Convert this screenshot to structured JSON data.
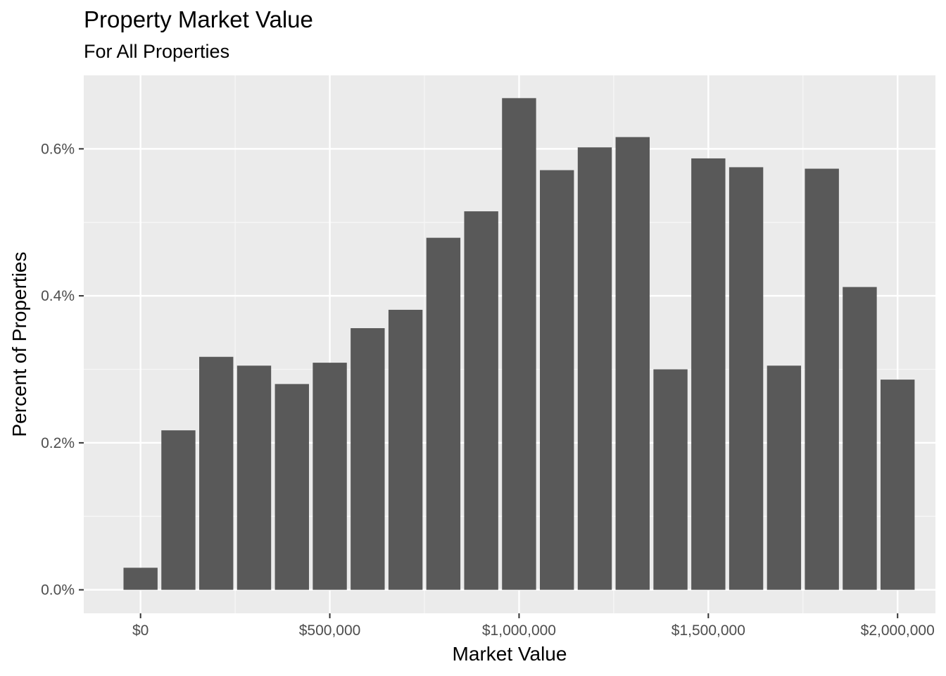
{
  "chart_data": {
    "type": "bar",
    "title": "Property Market Value",
    "subtitle": "For All Properties",
    "xlabel": "Market Value",
    "ylabel": "Percent of Properties",
    "x": [
      0,
      100000,
      200000,
      300000,
      400000,
      500000,
      600000,
      700000,
      800000,
      900000,
      1000000,
      1100000,
      1200000,
      1300000,
      1400000,
      1500000,
      1600000,
      1700000,
      1800000,
      1900000,
      2000000
    ],
    "values": [
      0.03,
      0.217,
      0.317,
      0.305,
      0.28,
      0.309,
      0.356,
      0.381,
      0.479,
      0.515,
      0.669,
      0.571,
      0.602,
      0.616,
      0.3,
      0.587,
      0.575,
      0.305,
      0.573,
      0.412,
      0.286
    ],
    "bin_width": 90000,
    "xlim": [
      -150000,
      2100000
    ],
    "ylim": [
      -0.032,
      0.7
    ],
    "x_ticks": [
      0,
      500000,
      1000000,
      1500000,
      2000000
    ],
    "x_tick_labels": [
      "$0",
      "$500,000",
      "$1,000,000",
      "$1,500,000",
      "$2,000,000"
    ],
    "y_ticks": [
      0,
      0.2,
      0.4,
      0.6
    ],
    "y_tick_labels": [
      "0.0%",
      "0.2%",
      "0.4%",
      "0.6%"
    ],
    "grid": true,
    "legend": "none",
    "colors": {
      "bar": "#595959",
      "panel": "#ebebeb",
      "grid_major": "#ffffff",
      "grid_minor": "#f7f7f7",
      "tick": "#333333"
    }
  }
}
